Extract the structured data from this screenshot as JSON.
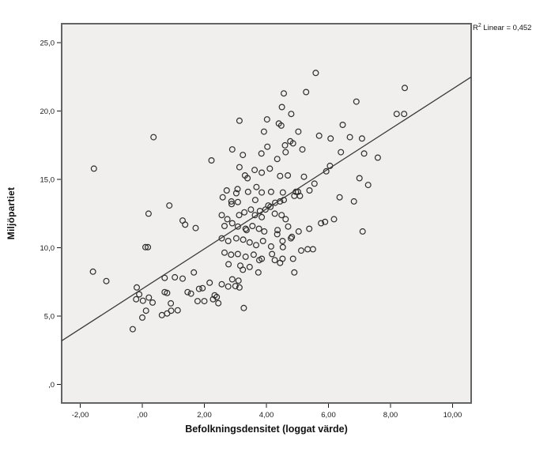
{
  "chart_data": {
    "type": "scatter",
    "title": "",
    "xlabel": "Befolkningsdensitet (loggat värde)",
    "ylabel": "Miljöpartiet",
    "annotation": {
      "base": "R",
      "sup": "2",
      "rest": " Linear = 0,452"
    },
    "legend": "none",
    "grid": false,
    "xlim": [
      -2.6,
      10.6
    ],
    "ylim": [
      -1.35,
      26.4
    ],
    "x_ticks": {
      "values": [
        -2,
        0,
        2,
        4,
        6,
        8,
        10
      ],
      "labels": [
        "-2,00",
        ",00",
        "2,00",
        "4,00",
        "6,00",
        "8,00",
        "10,00"
      ]
    },
    "y_ticks": {
      "values": [
        0,
        5,
        10,
        15,
        20,
        25
      ],
      "labels": [
        ",0",
        "5,0",
        "10,0",
        "15,0",
        "20,0",
        "25,0"
      ]
    },
    "regression_line": {
      "x1": -2.6,
      "y1": 3.2,
      "x2": 10.6,
      "y2": 22.5
    },
    "points": [
      [
        0.36,
        18.1
      ],
      [
        5.59,
        22.8
      ],
      [
        5.28,
        21.4
      ],
      [
        4.56,
        21.3
      ],
      [
        4.5,
        20.3
      ],
      [
        4.8,
        19.8
      ],
      [
        3.13,
        19.3
      ],
      [
        4.02,
        19.4
      ],
      [
        4.4,
        19.1
      ],
      [
        4.48,
        18.95
      ],
      [
        3.92,
        18.5
      ],
      [
        5.03,
        18.5
      ],
      [
        5.7,
        18.2
      ],
      [
        6.07,
        18.0
      ],
      [
        4.6,
        17.5
      ],
      [
        4.86,
        17.65
      ],
      [
        4.77,
        17.8
      ],
      [
        4.03,
        17.4
      ],
      [
        2.9,
        17.2
      ],
      [
        5.16,
        17.2
      ],
      [
        8.46,
        21.7
      ],
      [
        6.9,
        20.7
      ],
      [
        8.2,
        19.8
      ],
      [
        8.44,
        19.8
      ],
      [
        6.46,
        19.0
      ],
      [
        6.69,
        18.1
      ],
      [
        7.08,
        18.0
      ],
      [
        6.4,
        17.0
      ],
      [
        7.15,
        16.9
      ],
      [
        7.59,
        16.6
      ],
      [
        7.0,
        15.1
      ],
      [
        7.28,
        14.6
      ],
      [
        6.82,
        13.4
      ],
      [
        7.1,
        11.2
      ],
      [
        -1.56,
        15.8
      ],
      [
        0.87,
        13.1
      ],
      [
        0.2,
        12.5
      ],
      [
        1.3,
        12.0
      ],
      [
        1.38,
        11.7
      ],
      [
        1.72,
        11.45
      ],
      [
        0.1,
        10.05
      ],
      [
        0.18,
        10.05
      ],
      [
        -1.59,
        8.26
      ],
      [
        1.66,
        8.2
      ],
      [
        2.23,
        16.4
      ],
      [
        3.24,
        16.8
      ],
      [
        3.84,
        16.9
      ],
      [
        4.35,
        16.5
      ],
      [
        4.62,
        17.0
      ],
      [
        3.13,
        15.9
      ],
      [
        3.62,
        15.7
      ],
      [
        3.85,
        15.5
      ],
      [
        4.11,
        15.8
      ],
      [
        3.31,
        15.3
      ],
      [
        3.39,
        15.1
      ],
      [
        4.44,
        15.26
      ],
      [
        4.69,
        15.3
      ],
      [
        5.21,
        15.2
      ],
      [
        5.55,
        14.7
      ],
      [
        5.93,
        15.6
      ],
      [
        6.05,
        16.0
      ],
      [
        5.39,
        14.2
      ],
      [
        5.02,
        14.1
      ],
      [
        3.68,
        14.45
      ],
      [
        2.72,
        14.2
      ],
      [
        2.59,
        13.7
      ],
      [
        2.88,
        13.2
      ],
      [
        3.07,
        14.3
      ],
      [
        4.9,
        13.8
      ],
      [
        4.13,
        13.0
      ],
      [
        4.56,
        13.5
      ],
      [
        4.44,
        13.4
      ],
      [
        4.28,
        13.3
      ],
      [
        3.79,
        12.7
      ],
      [
        3.97,
        12.8
      ],
      [
        5.76,
        11.8
      ],
      [
        5.89,
        11.9
      ],
      [
        6.18,
        12.1
      ],
      [
        6.36,
        13.7
      ],
      [
        4.35,
        11.0
      ],
      [
        4.52,
        10.5
      ],
      [
        4.82,
        10.8
      ],
      [
        5.12,
        9.8
      ],
      [
        5.33,
        9.9
      ],
      [
        4.86,
        9.2
      ],
      [
        4.44,
        8.9
      ],
      [
        4.18,
        9.55
      ],
      [
        3.77,
        9.1
      ],
      [
        4.9,
        8.2
      ],
      [
        3.74,
        8.2
      ],
      [
        3.24,
        8.4
      ],
      [
        4.52,
        9.2
      ],
      [
        3.03,
        14.0
      ],
      [
        3.41,
        14.1
      ],
      [
        3.64,
        13.5
      ],
      [
        3.85,
        14.05
      ],
      [
        4.15,
        14.1
      ],
      [
        4.53,
        14.05
      ],
      [
        4.95,
        14.1
      ],
      [
        5.08,
        13.8
      ],
      [
        2.87,
        13.4
      ],
      [
        3.08,
        13.35
      ],
      [
        2.56,
        12.4
      ],
      [
        2.74,
        12.1
      ],
      [
        3.12,
        12.4
      ],
      [
        3.29,
        12.6
      ],
      [
        3.5,
        12.8
      ],
      [
        3.63,
        12.4
      ],
      [
        3.85,
        12.25
      ],
      [
        4.06,
        13.1
      ],
      [
        4.27,
        12.5
      ],
      [
        4.49,
        12.4
      ],
      [
        4.62,
        12.1
      ],
      [
        2.65,
        11.6
      ],
      [
        2.9,
        11.8
      ],
      [
        3.08,
        11.56
      ],
      [
        3.33,
        11.4
      ],
      [
        3.36,
        11.3
      ],
      [
        3.55,
        11.6
      ],
      [
        3.76,
        11.4
      ],
      [
        3.93,
        11.2
      ],
      [
        4.36,
        11.3
      ],
      [
        4.7,
        11.56
      ],
      [
        5.04,
        11.2
      ],
      [
        5.38,
        11.4
      ],
      [
        2.56,
        10.7
      ],
      [
        2.77,
        10.5
      ],
      [
        3.03,
        10.7
      ],
      [
        3.25,
        10.6
      ],
      [
        3.46,
        10.4
      ],
      [
        3.67,
        10.2
      ],
      [
        3.89,
        10.5
      ],
      [
        4.15,
        10.1
      ],
      [
        4.53,
        10.05
      ],
      [
        4.79,
        10.7
      ],
      [
        5.5,
        9.9
      ],
      [
        2.65,
        9.65
      ],
      [
        2.86,
        9.5
      ],
      [
        3.08,
        9.55
      ],
      [
        3.33,
        9.35
      ],
      [
        3.59,
        9.5
      ],
      [
        3.85,
        9.2
      ],
      [
        4.27,
        9.1
      ],
      [
        2.78,
        8.8
      ],
      [
        3.16,
        8.7
      ],
      [
        3.46,
        8.6
      ],
      [
        -1.16,
        7.57
      ],
      [
        -0.18,
        7.1
      ],
      [
        -0.1,
        6.6
      ],
      [
        -0.2,
        6.24
      ],
      [
        0.02,
        6.13
      ],
      [
        0.12,
        5.4
      ],
      [
        0.0,
        4.9
      ],
      [
        -0.31,
        4.05
      ],
      [
        0.63,
        5.08
      ],
      [
        0.8,
        5.2
      ],
      [
        0.93,
        5.4
      ],
      [
        0.92,
        5.94
      ],
      [
        1.14,
        5.43
      ],
      [
        0.72,
        6.76
      ],
      [
        0.8,
        6.7
      ],
      [
        0.72,
        7.8
      ],
      [
        1.05,
        7.85
      ],
      [
        1.3,
        7.75
      ],
      [
        1.46,
        6.76
      ],
      [
        1.57,
        6.65
      ],
      [
        1.83,
        7.0
      ],
      [
        0.21,
        6.36
      ],
      [
        0.33,
        6.0
      ],
      [
        1.78,
        6.1
      ],
      [
        1.94,
        7.05
      ],
      [
        2.17,
        7.45
      ],
      [
        2.56,
        7.34
      ],
      [
        2.77,
        7.17
      ],
      [
        3.0,
        7.2
      ],
      [
        3.13,
        7.1
      ],
      [
        2.9,
        7.7
      ],
      [
        3.1,
        7.6
      ],
      [
        2.33,
        6.53
      ],
      [
        2.4,
        6.4
      ],
      [
        2.0,
        6.1
      ],
      [
        2.28,
        6.24
      ],
      [
        2.45,
        5.95
      ],
      [
        3.27,
        5.6
      ]
    ]
  },
  "colors": {
    "plot_bg": "#f0efee",
    "frame": "#636363",
    "tick": "#1a1a1a",
    "tick_label": "#1a1a1a",
    "point_stroke": "#2e2e2e",
    "regression_line": "#3a3a3a",
    "page_bg": "#ffffff"
  }
}
